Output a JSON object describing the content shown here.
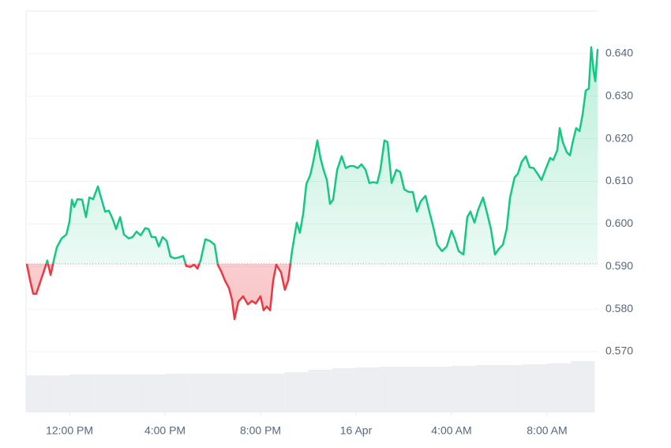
{
  "chart_data": {
    "type": "line",
    "x": [
      10.21,
      10.35,
      10.48,
      10.61,
      10.74,
      10.91,
      11.07,
      11.21,
      11.34,
      11.47,
      11.67,
      11.87,
      12.0,
      12.1,
      12.2,
      12.33,
      12.53,
      12.69,
      12.83,
      12.99,
      13.19,
      13.32,
      13.49,
      13.65,
      13.82,
      13.95,
      14.12,
      14.28,
      14.48,
      14.64,
      14.81,
      14.98,
      15.17,
      15.31,
      15.44,
      15.6,
      15.74,
      15.9,
      16.07,
      16.23,
      16.4,
      16.56,
      16.76,
      16.89,
      17.06,
      17.22,
      17.36,
      17.49,
      17.69,
      17.88,
      18.08,
      18.21,
      18.35,
      18.51,
      18.68,
      18.81,
      18.91,
      19.07,
      19.27,
      19.47,
      19.64,
      19.8,
      20.0,
      20.13,
      20.26,
      20.4,
      20.53,
      20.66,
      20.86,
      21.02,
      21.16,
      21.32,
      21.52,
      21.65,
      21.79,
      21.92,
      22.08,
      22.21,
      22.38,
      22.51,
      22.64,
      22.78,
      22.91,
      23.04,
      23.21,
      23.4,
      23.57,
      23.74,
      23.9,
      24.07,
      24.23,
      24.4,
      24.56,
      24.73,
      24.89,
      25.02,
      25.19,
      25.32,
      25.49,
      25.69,
      25.85,
      26.02,
      26.21,
      26.38,
      26.55,
      26.71,
      26.91,
      27.07,
      27.24,
      27.4,
      27.6,
      27.8,
      28.0,
      28.13,
      28.3,
      28.5,
      28.66,
      28.79,
      28.96,
      29.12,
      29.32,
      29.49,
      29.65,
      29.82,
      29.98,
      30.15,
      30.31,
      30.45,
      30.64,
      30.78,
      30.94,
      31.11,
      31.27,
      31.44,
      31.6,
      31.77,
      31.93,
      32.13,
      32.26,
      32.43,
      32.53,
      32.66,
      32.83,
      32.96,
      33.09,
      33.22,
      33.36,
      33.49,
      33.62,
      33.75,
      33.85,
      33.95,
      34.02,
      34.12
    ],
    "values": [
      0.5906,
      0.5867,
      0.5836,
      0.5836,
      0.5858,
      0.5886,
      0.5914,
      0.588,
      0.5914,
      0.5945,
      0.5966,
      0.5975,
      0.6006,
      0.6057,
      0.604,
      0.6058,
      0.6057,
      0.6016,
      0.6062,
      0.6058,
      0.6088,
      0.6062,
      0.6029,
      0.6031,
      0.601,
      0.5988,
      0.6016,
      0.5975,
      0.5966,
      0.5969,
      0.5982,
      0.5973,
      0.599,
      0.5988,
      0.5969,
      0.5969,
      0.5947,
      0.5969,
      0.596,
      0.5923,
      0.5919,
      0.5921,
      0.5925,
      0.5901,
      0.5899,
      0.5904,
      0.5895,
      0.5914,
      0.5964,
      0.596,
      0.5951,
      0.5904,
      0.5889,
      0.5867,
      0.5849,
      0.5821,
      0.5776,
      0.5817,
      0.583,
      0.5811,
      0.5819,
      0.5813,
      0.583,
      0.5797,
      0.5806,
      0.5797,
      0.5867,
      0.5904,
      0.5886,
      0.5845,
      0.5867,
      0.5936,
      0.6003,
      0.5979,
      0.6025,
      0.6094,
      0.6114,
      0.6146,
      0.6196,
      0.6155,
      0.6127,
      0.6103,
      0.6047,
      0.6057,
      0.6127,
      0.6159,
      0.6131,
      0.6136,
      0.6136,
      0.6131,
      0.614,
      0.6127,
      0.6096,
      0.6098,
      0.6096,
      0.6127,
      0.6196,
      0.6192,
      0.6096,
      0.6127,
      0.6122,
      0.6081,
      0.6075,
      0.6075,
      0.6029,
      0.6053,
      0.6066,
      0.6029,
      0.5992,
      0.5951,
      0.5936,
      0.5947,
      0.5984,
      0.5966,
      0.5936,
      0.5928,
      0.6016,
      0.6029,
      0.6003,
      0.6034,
      0.6062,
      0.6025,
      0.5988,
      0.5928,
      0.5941,
      0.5951,
      0.5988,
      0.6062,
      0.6109,
      0.6118,
      0.6146,
      0.6159,
      0.6133,
      0.6131,
      0.6118,
      0.6103,
      0.6127,
      0.6155,
      0.615,
      0.6173,
      0.6225,
      0.6192,
      0.6168,
      0.6161,
      0.6196,
      0.6225,
      0.6218,
      0.6257,
      0.6313,
      0.6318,
      0.6415,
      0.6359,
      0.6335,
      0.6411
    ],
    "baseline": 0.5906,
    "color_above": "#16c784",
    "color_below": "#ea3943",
    "xlim": [
      10.18,
      34.15
    ],
    "xticks": [
      {
        "value": 12,
        "label": "12:00 PM"
      },
      {
        "value": 16,
        "label": "4:00 PM"
      },
      {
        "value": 20,
        "label": "8:00 PM"
      },
      {
        "value": 24,
        "label": "16 Apr"
      },
      {
        "value": 28,
        "label": "4:00 AM"
      },
      {
        "value": 32,
        "label": "8:00 AM"
      }
    ],
    "ylim": [
      0.5557,
      0.65
    ],
    "yticks": [
      {
        "value": 0.57,
        "label": "0.570"
      },
      {
        "value": 0.58,
        "label": "0.580"
      },
      {
        "value": 0.59,
        "label": "0.590"
      },
      {
        "value": 0.6,
        "label": "0.600"
      },
      {
        "value": 0.61,
        "label": "0.610"
      },
      {
        "value": 0.62,
        "label": "0.620"
      },
      {
        "value": 0.63,
        "label": "0.630"
      },
      {
        "value": 0.64,
        "label": "0.640"
      }
    ],
    "grid": true,
    "volume": {
      "x": [
        10.5,
        11.5,
        12.5,
        13.5,
        14.5,
        15.5,
        16.5,
        17.5,
        18.5,
        19.5,
        20.5,
        21.5,
        22.5,
        23.5,
        24.5,
        25.5,
        26.5,
        27.5,
        28.5,
        29.5,
        30.5,
        31.5,
        32.5,
        33.5
      ],
      "values": [
        47,
        47,
        48,
        48,
        48,
        48,
        49,
        49,
        49,
        49,
        49,
        51,
        54,
        56,
        57,
        58,
        58,
        58,
        59,
        60,
        60,
        61,
        62,
        65
      ],
      "ylim": [
        0,
        508
      ],
      "color": "#eceef2"
    }
  }
}
